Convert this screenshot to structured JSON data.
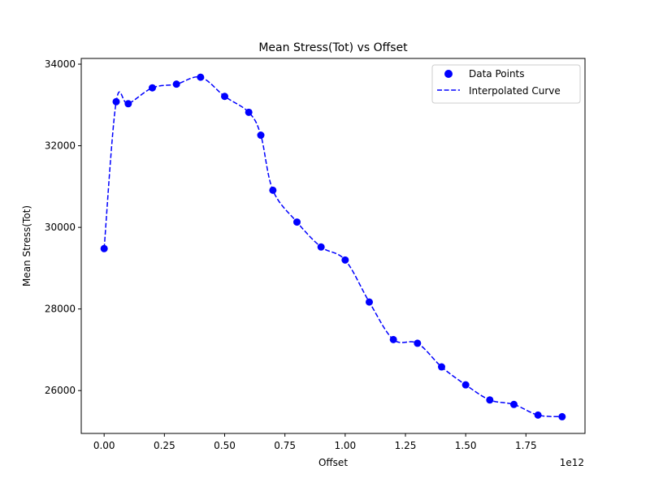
{
  "chart_data": {
    "type": "scatter",
    "title": "Mean Stress(Tot) vs Offset",
    "xlabel": "Offset",
    "ylabel": "Mean Stress(Tot)",
    "x_offset_text": "1e12",
    "xlim": [
      -0.095,
      1.995
    ],
    "ylim": [
      24950,
      34140
    ],
    "x_ticks": [
      0.0,
      0.25,
      0.5,
      0.75,
      1.0,
      1.25,
      1.5,
      1.75
    ],
    "x_tick_labels": [
      "0.00",
      "0.25",
      "0.50",
      "0.75",
      "1.00",
      "1.25",
      "1.50",
      "1.75"
    ],
    "y_ticks": [
      26000,
      28000,
      30000,
      32000,
      34000
    ],
    "y_tick_labels": [
      "26000",
      "28000",
      "30000",
      "32000",
      "34000"
    ],
    "grid": false,
    "legend_position": "top-right",
    "series": [
      {
        "name": "Data Points",
        "style": "markers",
        "color": "#0000ff",
        "x": [
          0.0,
          0.05,
          0.1,
          0.2,
          0.3,
          0.4,
          0.5,
          0.6,
          0.65,
          0.7,
          0.8,
          0.9,
          1.0,
          1.1,
          1.2,
          1.3,
          1.4,
          1.5,
          1.6,
          1.7,
          1.8,
          1.9
        ],
        "y": [
          29480,
          33080,
          33030,
          33420,
          33510,
          33680,
          33210,
          32820,
          32260,
          30910,
          30130,
          29520,
          29200,
          28170,
          27250,
          27160,
          26580,
          26140,
          25770,
          25660,
          25400,
          25360
        ]
      },
      {
        "name": "Interpolated Curve",
        "style": "dashed-line",
        "color": "#0000ff"
      }
    ]
  }
}
